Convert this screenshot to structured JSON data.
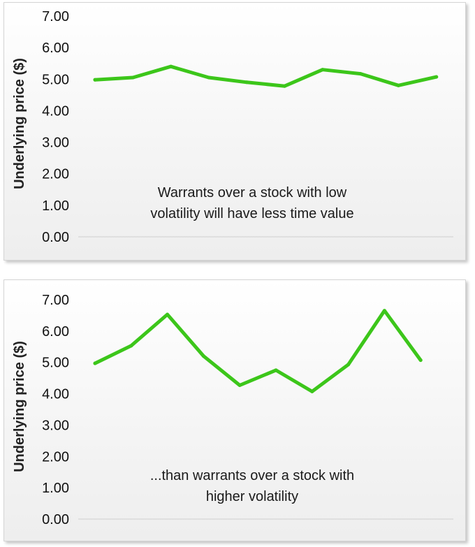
{
  "chart_data": [
    {
      "type": "line",
      "ylabel": "Underlying price ($)",
      "ylim": [
        0,
        7
      ],
      "yticks": [
        "0.00",
        "1.00",
        "2.00",
        "3.00",
        "4.00",
        "5.00",
        "6.00",
        "7.00"
      ],
      "annotation": [
        "Warrants over a stock with low",
        "volatility will have less time value"
      ],
      "grid": false,
      "color": "#3cc61a",
      "series": [
        {
          "values": [
            4.98,
            5.05,
            5.4,
            5.05,
            4.9,
            4.78,
            5.3,
            5.17,
            4.8,
            5.07
          ]
        }
      ]
    },
    {
      "type": "line",
      "ylabel": "Underlying price ($)",
      "ylim": [
        0,
        7
      ],
      "yticks": [
        "0.00",
        "1.00",
        "2.00",
        "3.00",
        "4.00",
        "5.00",
        "6.00",
        "7.00"
      ],
      "annotation": [
        "...than warrants over a stock with",
        "higher volatility"
      ],
      "grid": false,
      "color": "#3cc61a",
      "series": [
        {
          "values": [
            4.97,
            5.53,
            6.53,
            5.2,
            4.27,
            4.75,
            4.07,
            4.93,
            6.65,
            5.07
          ]
        }
      ]
    }
  ]
}
